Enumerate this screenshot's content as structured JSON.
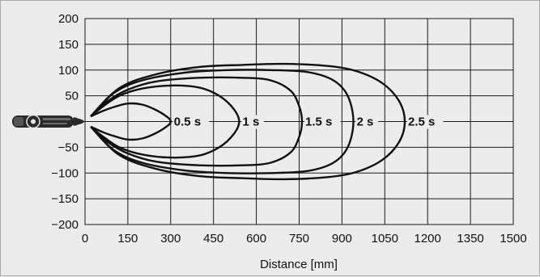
{
  "chart_data": {
    "type": "line",
    "title": "",
    "xlabel": "Distance [mm]",
    "ylabel": "",
    "xlim": [
      0,
      1500
    ],
    "ylim": [
      -200,
      200
    ],
    "grid": true,
    "x_ticks": [
      "0",
      "150",
      "300",
      "450",
      "600",
      "750",
      "900",
      "1050",
      "1200",
      "1350",
      "1500"
    ],
    "y_ticks": [
      "200",
      "150",
      "100",
      "50",
      "0",
      "−50",
      "−100",
      "−150",
      "−200"
    ],
    "series": [
      {
        "name": "0.5 s",
        "points": [
          [
            20,
            10
          ],
          [
            60,
            20
          ],
          [
            100,
            28
          ],
          [
            150,
            35
          ],
          [
            200,
            33
          ],
          [
            250,
            22
          ],
          [
            290,
            8
          ],
          [
            300,
            0
          ],
          [
            290,
            -8
          ],
          [
            250,
            -22
          ],
          [
            200,
            -33
          ],
          [
            150,
            -35
          ],
          [
            100,
            -28
          ],
          [
            60,
            -20
          ],
          [
            20,
            -10
          ]
        ]
      },
      {
        "name": "1 s",
        "points": [
          [
            20,
            10
          ],
          [
            60,
            28
          ],
          [
            120,
            50
          ],
          [
            200,
            64
          ],
          [
            300,
            70
          ],
          [
            400,
            66
          ],
          [
            470,
            50
          ],
          [
            520,
            25
          ],
          [
            540,
            0
          ],
          [
            520,
            -25
          ],
          [
            470,
            -50
          ],
          [
            400,
            -66
          ],
          [
            300,
            -70
          ],
          [
            200,
            -64
          ],
          [
            120,
            -50
          ],
          [
            60,
            -28
          ],
          [
            20,
            -10
          ]
        ]
      },
      {
        "name": "1.5 s",
        "points": [
          [
            20,
            10
          ],
          [
            80,
            40
          ],
          [
            150,
            62
          ],
          [
            250,
            78
          ],
          [
            400,
            85
          ],
          [
            550,
            85
          ],
          [
            650,
            80
          ],
          [
            720,
            60
          ],
          [
            750,
            30
          ],
          [
            760,
            0
          ],
          [
            750,
            -30
          ],
          [
            720,
            -60
          ],
          [
            650,
            -80
          ],
          [
            550,
            -85
          ],
          [
            400,
            -85
          ],
          [
            250,
            -78
          ],
          [
            150,
            -62
          ],
          [
            80,
            -40
          ],
          [
            20,
            -10
          ]
        ]
      },
      {
        "name": "2 s",
        "points": [
          [
            20,
            10
          ],
          [
            100,
            55
          ],
          [
            200,
            80
          ],
          [
            350,
            95
          ],
          [
            500,
            100
          ],
          [
            650,
            100
          ],
          [
            780,
            96
          ],
          [
            870,
            80
          ],
          [
            920,
            50
          ],
          [
            940,
            0
          ],
          [
            920,
            -50
          ],
          [
            870,
            -80
          ],
          [
            780,
            -96
          ],
          [
            650,
            -100
          ],
          [
            500,
            -100
          ],
          [
            350,
            -95
          ],
          [
            200,
            -80
          ],
          [
            100,
            -55
          ],
          [
            20,
            -10
          ]
        ]
      },
      {
        "name": "2.5 s",
        "points": [
          [
            20,
            10
          ],
          [
            120,
            65
          ],
          [
            250,
            92
          ],
          [
            400,
            106
          ],
          [
            550,
            110
          ],
          [
            700,
            112
          ],
          [
            850,
            108
          ],
          [
            950,
            98
          ],
          [
            1040,
            75
          ],
          [
            1100,
            40
          ],
          [
            1120,
            0
          ],
          [
            1100,
            -40
          ],
          [
            1040,
            -75
          ],
          [
            950,
            -98
          ],
          [
            850,
            -108
          ],
          [
            700,
            -112
          ],
          [
            550,
            -110
          ],
          [
            400,
            -106
          ],
          [
            250,
            -92
          ],
          [
            120,
            -65
          ],
          [
            20,
            -10
          ]
        ]
      }
    ]
  }
}
